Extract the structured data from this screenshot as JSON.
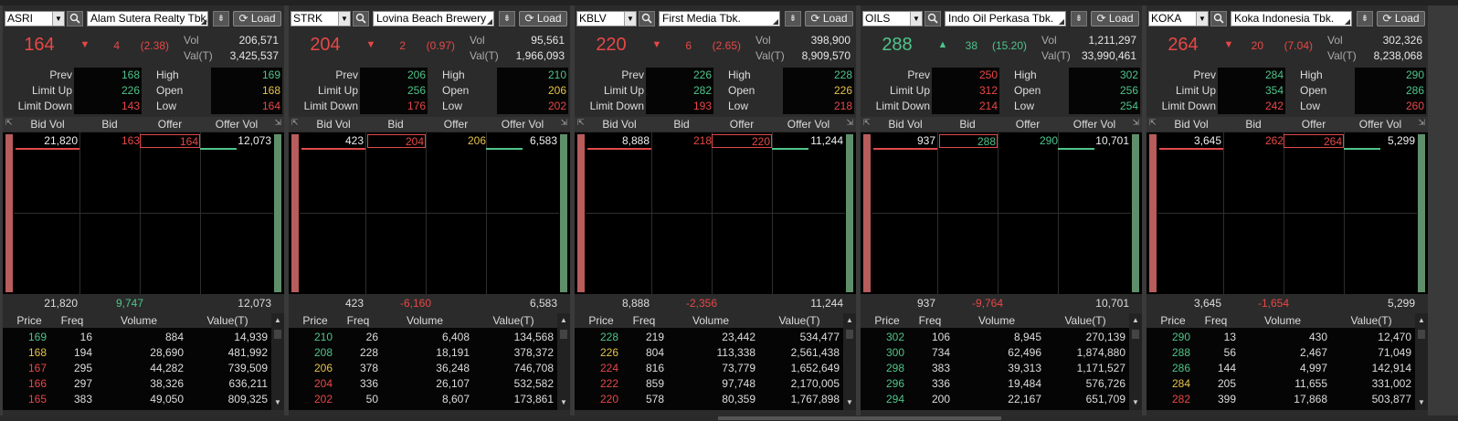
{
  "colors": {
    "up": "#4fc48a",
    "down": "#e84747",
    "unch": "#e6c34a"
  },
  "labels": {
    "load": "Load",
    "vol": "Vol",
    "valt": "Val(T)",
    "prev": "Prev",
    "limit_up": "Limit Up",
    "limit_down": "Limit Down",
    "high": "High",
    "open": "Open",
    "low": "Low",
    "bid_vol": "Bid Vol",
    "bid": "Bid",
    "offer": "Offer",
    "offer_vol": "Offer Vol",
    "price": "Price",
    "freq": "Freq",
    "volume": "Volume",
    "value_t": "Value(T)"
  },
  "panels": [
    {
      "code": "ASRI",
      "name": "Alam Sutera Realty Tbk.",
      "last": "164",
      "last_color": "down",
      "arrow": "▼",
      "change": "4",
      "pct": "(2.38)",
      "vol": "206,571",
      "valt": "3,425,537",
      "prev": "168",
      "limit_up": "226",
      "limit_down": "143",
      "high": "169",
      "open": "168",
      "low": "164",
      "prev_c": "green",
      "limit_up_c": "green",
      "limit_down_c": "red",
      "high_c": "green",
      "open_c": "yellow",
      "low_c": "red",
      "bid_vol": "21,820",
      "bid": "163",
      "bid_c": "red",
      "offer": "164",
      "offer_c": "red",
      "offer_vol": "12,073",
      "boxed": "offer",
      "tot_bid": "21,820",
      "tot_net": "9,747",
      "tot_net_c": "green",
      "tot_offer": "12,073",
      "trades": [
        {
          "price": "169",
          "c": "green",
          "freq": "16",
          "volume": "884",
          "value": "14,939"
        },
        {
          "price": "168",
          "c": "yellow",
          "freq": "194",
          "volume": "28,690",
          "value": "481,992"
        },
        {
          "price": "167",
          "c": "red",
          "freq": "295",
          "volume": "44,282",
          "value": "739,509"
        },
        {
          "price": "166",
          "c": "red",
          "freq": "297",
          "volume": "38,326",
          "value": "636,211"
        },
        {
          "price": "165",
          "c": "red",
          "freq": "383",
          "volume": "49,050",
          "value": "809,325"
        }
      ]
    },
    {
      "code": "STRK",
      "name": "Lovina Beach Brewery",
      "last": "204",
      "last_color": "down",
      "arrow": "▼",
      "change": "2",
      "pct": "(0.97)",
      "vol": "95,561",
      "valt": "1,966,093",
      "prev": "206",
      "limit_up": "256",
      "limit_down": "176",
      "high": "210",
      "open": "206",
      "low": "202",
      "prev_c": "green",
      "limit_up_c": "green",
      "limit_down_c": "red",
      "high_c": "green",
      "open_c": "yellow",
      "low_c": "red",
      "bid_vol": "423",
      "bid": "204",
      "bid_c": "red",
      "offer": "206",
      "offer_c": "yellow",
      "offer_vol": "6,583",
      "boxed": "bid",
      "tot_bid": "423",
      "tot_net": "-6,160",
      "tot_net_c": "red",
      "tot_offer": "6,583",
      "trades": [
        {
          "price": "210",
          "c": "green",
          "freq": "26",
          "volume": "6,408",
          "value": "134,568"
        },
        {
          "price": "208",
          "c": "green",
          "freq": "228",
          "volume": "18,191",
          "value": "378,372"
        },
        {
          "price": "206",
          "c": "yellow",
          "freq": "378",
          "volume": "36,248",
          "value": "746,708"
        },
        {
          "price": "204",
          "c": "red",
          "freq": "336",
          "volume": "26,107",
          "value": "532,582"
        },
        {
          "price": "202",
          "c": "red",
          "freq": "50",
          "volume": "8,607",
          "value": "173,861"
        }
      ]
    },
    {
      "code": "KBLV",
      "name": "First Media Tbk.",
      "last": "220",
      "last_color": "down",
      "arrow": "▼",
      "change": "6",
      "pct": "(2.65)",
      "vol": "398,900",
      "valt": "8,909,570",
      "prev": "226",
      "limit_up": "282",
      "limit_down": "193",
      "high": "228",
      "open": "226",
      "low": "218",
      "prev_c": "green",
      "limit_up_c": "green",
      "limit_down_c": "red",
      "high_c": "green",
      "open_c": "yellow",
      "low_c": "red",
      "bid_vol": "8,888",
      "bid": "218",
      "bid_c": "red",
      "offer": "220",
      "offer_c": "red",
      "offer_vol": "11,244",
      "boxed": "offer",
      "tot_bid": "8,888",
      "tot_net": "-2,356",
      "tot_net_c": "red",
      "tot_offer": "11,244",
      "trades": [
        {
          "price": "228",
          "c": "green",
          "freq": "219",
          "volume": "23,442",
          "value": "534,477"
        },
        {
          "price": "226",
          "c": "yellow",
          "freq": "804",
          "volume": "113,338",
          "value": "2,561,438"
        },
        {
          "price": "224",
          "c": "red",
          "freq": "816",
          "volume": "73,779",
          "value": "1,652,649"
        },
        {
          "price": "222",
          "c": "red",
          "freq": "859",
          "volume": "97,748",
          "value": "2,170,005"
        },
        {
          "price": "220",
          "c": "red",
          "freq": "578",
          "volume": "80,359",
          "value": "1,767,898"
        }
      ]
    },
    {
      "code": "OILS",
      "name": "Indo Oil Perkasa Tbk.",
      "last": "288",
      "last_color": "up",
      "arrow": "▲",
      "change": "38",
      "pct": "(15.20)",
      "vol": "1,211,297",
      "valt": "33,990,461",
      "prev": "250",
      "limit_up": "312",
      "limit_down": "214",
      "high": "302",
      "open": "256",
      "low": "254",
      "prev_c": "red",
      "limit_up_c": "red",
      "limit_down_c": "red",
      "high_c": "green",
      "open_c": "green",
      "low_c": "green",
      "bid_vol": "937",
      "bid": "288",
      "bid_c": "green",
      "offer": "290",
      "offer_c": "green",
      "offer_vol": "10,701",
      "boxed": "bid",
      "tot_bid": "937",
      "tot_net": "-9,764",
      "tot_net_c": "red",
      "tot_offer": "10,701",
      "trades": [
        {
          "price": "302",
          "c": "green",
          "freq": "106",
          "volume": "8,945",
          "value": "270,139"
        },
        {
          "price": "300",
          "c": "green",
          "freq": "734",
          "volume": "62,496",
          "value": "1,874,880"
        },
        {
          "price": "298",
          "c": "green",
          "freq": "383",
          "volume": "39,313",
          "value": "1,171,527"
        },
        {
          "price": "296",
          "c": "green",
          "freq": "336",
          "volume": "19,484",
          "value": "576,726"
        },
        {
          "price": "294",
          "c": "green",
          "freq": "200",
          "volume": "22,167",
          "value": "651,709"
        }
      ]
    },
    {
      "code": "KOKA",
      "name": "Koka Indonesia Tbk.",
      "last": "264",
      "last_color": "down",
      "arrow": "▼",
      "change": "20",
      "pct": "(7.04)",
      "vol": "302,326",
      "valt": "8,238,068",
      "prev": "284",
      "limit_up": "354",
      "limit_down": "242",
      "high": "290",
      "open": "286",
      "low": "260",
      "prev_c": "green",
      "limit_up_c": "green",
      "limit_down_c": "red",
      "high_c": "green",
      "open_c": "green",
      "low_c": "red",
      "bid_vol": "3,645",
      "bid": "262",
      "bid_c": "red",
      "offer": "264",
      "offer_c": "red",
      "offer_vol": "5,299",
      "boxed": "offer",
      "tot_bid": "3,645",
      "tot_net": "-1,654",
      "tot_net_c": "red",
      "tot_offer": "5,299",
      "trades": [
        {
          "price": "290",
          "c": "green",
          "freq": "13",
          "volume": "430",
          "value": "12,470"
        },
        {
          "price": "288",
          "c": "green",
          "freq": "56",
          "volume": "2,467",
          "value": "71,049"
        },
        {
          "price": "286",
          "c": "green",
          "freq": "144",
          "volume": "4,997",
          "value": "142,914"
        },
        {
          "price": "284",
          "c": "yellow",
          "freq": "205",
          "volume": "11,655",
          "value": "331,002"
        },
        {
          "price": "282",
          "c": "red",
          "freq": "399",
          "volume": "17,868",
          "value": "503,877"
        }
      ]
    }
  ]
}
